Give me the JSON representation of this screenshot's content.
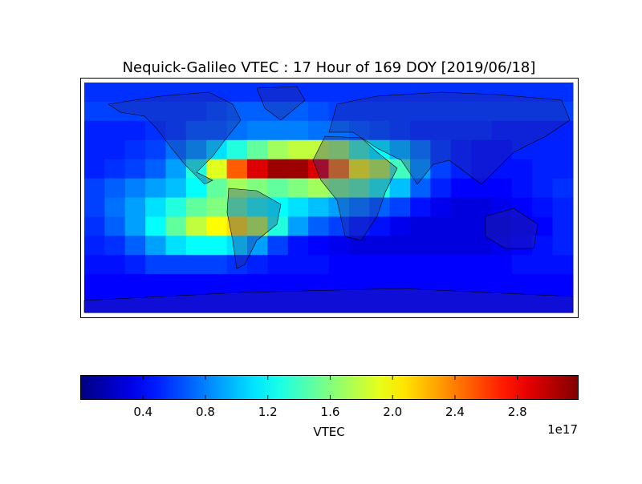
{
  "chart_data": {
    "type": "heatmap",
    "title": "Nequick-Galileo VTEC : 17 Hour of 169 DOY [2019/06/18]",
    "xlim": [
      -180,
      180
    ],
    "ylim": [
      -90,
      90
    ],
    "z": [
      [
        0.55,
        0.55,
        0.55,
        0.55,
        0.55,
        0.55,
        0.55,
        0.55,
        0.55,
        0.55,
        0.55,
        0.55,
        0.55,
        0.55,
        0.55,
        0.55,
        0.55,
        0.55,
        0.55,
        0.55,
        0.55,
        0.55,
        0.55,
        0.55
      ],
      [
        0.6,
        0.6,
        0.6,
        0.6,
        0.6,
        0.6,
        0.65,
        0.7,
        0.7,
        0.7,
        0.7,
        0.65,
        0.6,
        0.6,
        0.6,
        0.6,
        0.6,
        0.6,
        0.6,
        0.6,
        0.6,
        0.6,
        0.6,
        0.6
      ],
      [
        0.5,
        0.5,
        0.5,
        0.55,
        0.6,
        0.7,
        0.7,
        0.75,
        0.8,
        0.8,
        0.8,
        0.75,
        0.75,
        0.7,
        0.65,
        0.6,
        0.55,
        0.55,
        0.55,
        0.55,
        0.5,
        0.5,
        0.5,
        0.5
      ],
      [
        0.5,
        0.5,
        0.55,
        0.6,
        0.75,
        0.9,
        1.1,
        1.3,
        1.5,
        1.7,
        1.8,
        1.8,
        1.7,
        1.4,
        1.2,
        1.0,
        0.8,
        0.6,
        0.5,
        0.45,
        0.45,
        0.5,
        0.5,
        0.5
      ],
      [
        0.5,
        0.55,
        0.6,
        0.7,
        0.9,
        1.3,
        1.9,
        2.5,
        2.9,
        3.1,
        3.1,
        2.9,
        2.4,
        2.0,
        1.8,
        1.4,
        0.9,
        0.6,
        0.5,
        0.45,
        0.45,
        0.45,
        0.5,
        0.5
      ],
      [
        0.6,
        0.7,
        0.8,
        0.9,
        1.0,
        1.2,
        1.5,
        1.7,
        1.6,
        1.5,
        1.6,
        1.7,
        1.6,
        1.5,
        1.3,
        1.0,
        0.7,
        0.5,
        0.4,
        0.4,
        0.4,
        0.45,
        0.5,
        0.55
      ],
      [
        0.6,
        0.75,
        0.9,
        1.1,
        1.3,
        1.5,
        1.6,
        1.5,
        1.3,
        1.2,
        1.1,
        1.0,
        0.9,
        0.8,
        0.7,
        0.6,
        0.45,
        0.35,
        0.3,
        0.3,
        0.35,
        0.4,
        0.45,
        0.5
      ],
      [
        0.55,
        0.7,
        0.9,
        1.2,
        1.5,
        1.8,
        2.0,
        2.1,
        1.8,
        1.3,
        0.9,
        0.7,
        0.6,
        0.5,
        0.45,
        0.35,
        0.3,
        0.3,
        0.3,
        0.3,
        0.3,
        0.35,
        0.4,
        0.5
      ],
      [
        0.5,
        0.55,
        0.7,
        0.9,
        1.1,
        1.2,
        1.2,
        1.1,
        0.9,
        0.6,
        0.45,
        0.4,
        0.35,
        0.3,
        0.3,
        0.3,
        0.3,
        0.3,
        0.3,
        0.3,
        0.35,
        0.4,
        0.45,
        0.5
      ],
      [
        0.45,
        0.45,
        0.5,
        0.6,
        0.6,
        0.6,
        0.6,
        0.55,
        0.5,
        0.45,
        0.45,
        0.45,
        0.4,
        0.4,
        0.4,
        0.4,
        0.4,
        0.4,
        0.4,
        0.4,
        0.4,
        0.45,
        0.45,
        0.45
      ],
      [
        0.4,
        0.4,
        0.4,
        0.4,
        0.4,
        0.4,
        0.4,
        0.4,
        0.4,
        0.4,
        0.4,
        0.4,
        0.4,
        0.4,
        0.4,
        0.4,
        0.4,
        0.4,
        0.4,
        0.4,
        0.4,
        0.4,
        0.4,
        0.4
      ],
      [
        0.4,
        0.4,
        0.4,
        0.4,
        0.4,
        0.4,
        0.4,
        0.4,
        0.4,
        0.4,
        0.4,
        0.4,
        0.4,
        0.4,
        0.4,
        0.4,
        0.4,
        0.4,
        0.4,
        0.4,
        0.4,
        0.4,
        0.4,
        0.4
      ]
    ],
    "colorbar": {
      "lim": [
        0,
        3.19
      ],
      "ticks": [
        0.4,
        0.8,
        1.2,
        1.6,
        {
          "value": 2,
          "label": "2.0"
        },
        2.4,
        2.8
      ],
      "label": "VTEC",
      "offset": "1e17"
    }
  }
}
